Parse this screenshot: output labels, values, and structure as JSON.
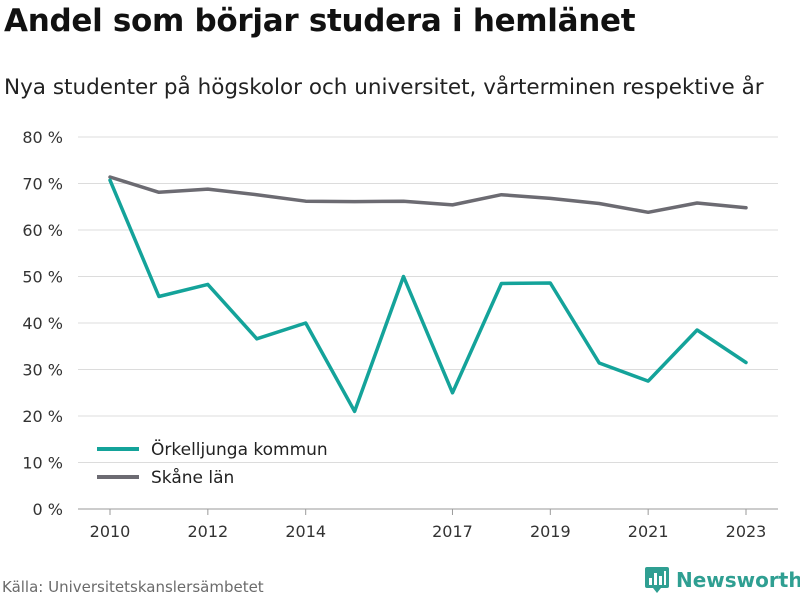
{
  "header": {
    "title": "Andel som börjar studera i hemlänet",
    "subtitle": "Nya studenter på högskolor och universitet, vårterminen respektive år"
  },
  "footer": {
    "source": "Källa: Universitetskanslersämbetet",
    "brand": "Newsworthy",
    "brand_icon": "bar-chart-logo-icon"
  },
  "colors": {
    "series_1": "#14a39a",
    "series_2": "#6c6b72",
    "brand": "#2f9f92"
  },
  "chart_data": {
    "type": "line",
    "title": "Andel som börjar studera i hemlänet",
    "subtitle": "Nya studenter på högskolor och universitet, vårterminen respektive år",
    "x": [
      2010,
      2011,
      2012,
      2013,
      2014,
      2015,
      2016,
      2017,
      2018,
      2019,
      2020,
      2021,
      2022,
      2023
    ],
    "x_ticks": [
      "2010",
      "2012",
      "2014",
      "2017",
      "2019",
      "2021",
      "2023"
    ],
    "y_ticks": [
      "0 %",
      "10 %",
      "20 %",
      "30 %",
      "40 %",
      "50 %",
      "60 %",
      "70 %",
      "80 %"
    ],
    "ylim": [
      0,
      80
    ],
    "y_unit": "%",
    "grid": true,
    "legend_position": "bottom-left",
    "series": [
      {
        "name": "Örkelljunga kommun",
        "values": [
          70.7,
          45.7,
          48.3,
          36.6,
          40.0,
          21.0,
          50.0,
          25.0,
          48.5,
          48.6,
          31.4,
          27.5,
          38.5,
          31.5
        ]
      },
      {
        "name": "Skåne län",
        "values": [
          71.4,
          68.1,
          68.8,
          67.6,
          66.2,
          66.1,
          66.2,
          65.4,
          67.6,
          66.8,
          65.7,
          63.8,
          65.8,
          64.8
        ]
      }
    ]
  }
}
